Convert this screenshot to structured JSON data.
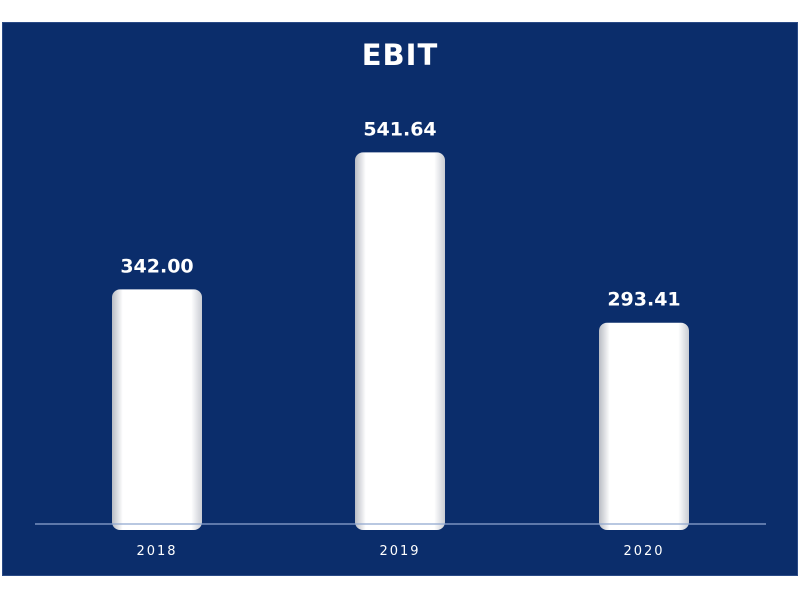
{
  "chart_data": {
    "type": "bar",
    "title": "EBIT",
    "categories": [
      "2018",
      "2019",
      "2020"
    ],
    "values": [
      342.0,
      541.64,
      293.41
    ],
    "value_labels": [
      "342.00",
      "541.64",
      "293.41"
    ],
    "xlabel": "",
    "ylabel": "",
    "ylim": [
      0,
      700
    ],
    "grid": false,
    "legend": "none",
    "colors": {
      "background": "#0b2d6b",
      "bar": "#ffffff",
      "axis": "#8fa6cf",
      "text": "#ffffff"
    }
  }
}
